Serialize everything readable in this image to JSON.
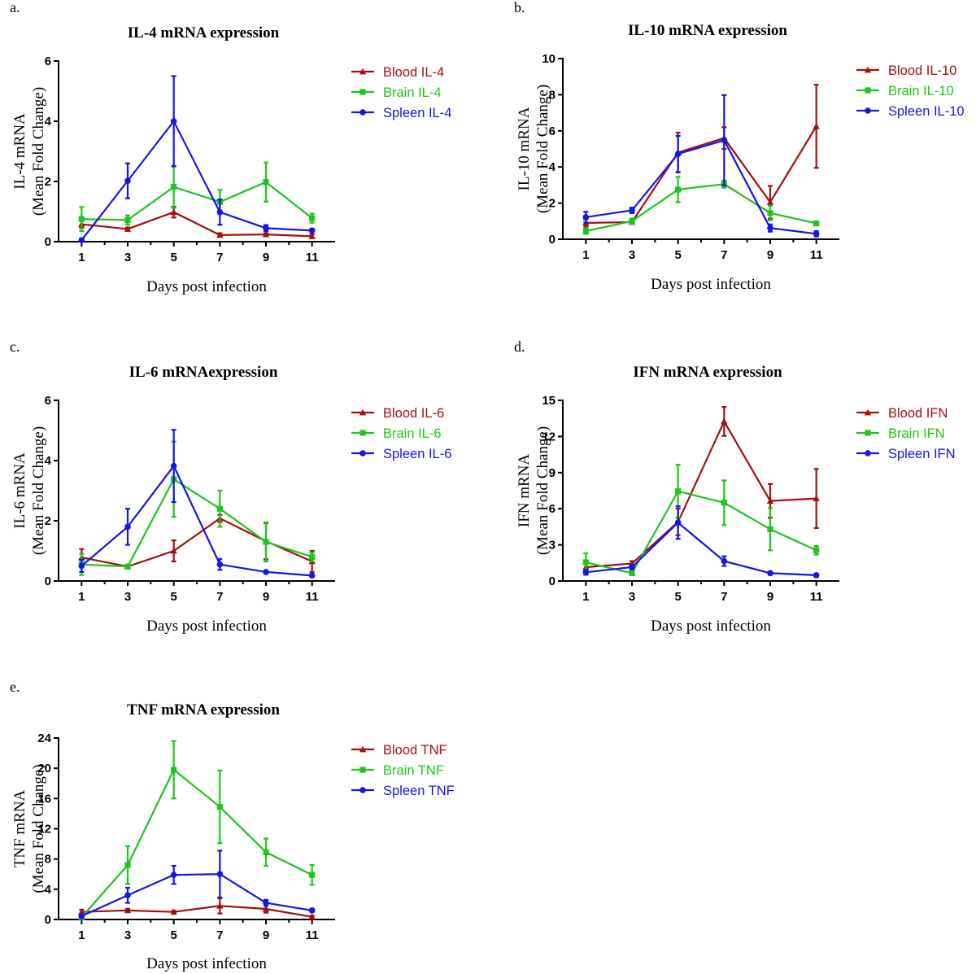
{
  "colors": {
    "blood": "#A50F0F",
    "brain": "#1DC51D",
    "spleen": "#1515E8",
    "axis": "#000000"
  },
  "chart_data": [
    {
      "type": "line",
      "panel_label": "a.",
      "title": "IL-4 mRNA expression",
      "ylabel": [
        "IL-4 mRNA",
        "(Mean Fold Change)"
      ],
      "xlabel": "Days post infection",
      "x": [
        1,
        3,
        5,
        7,
        9,
        11
      ],
      "xlim": [
        0,
        12
      ],
      "ylim": [
        0,
        6
      ],
      "yticks": [
        0,
        2,
        4,
        6
      ],
      "ytick_labels": [
        "0",
        "2",
        "4",
        "6"
      ],
      "legend": "top-right",
      "series": [
        {
          "name": "Blood IL-4",
          "color_key": "blood",
          "marker": "triangle",
          "values": [
            0.58,
            0.42,
            0.98,
            0.22,
            0.24,
            0.18
          ],
          "errors": [
            0.12,
            0.05,
            0.18,
            0.06,
            0.04,
            0.06
          ]
        },
        {
          "name": "Brain IL-4",
          "color_key": "brain",
          "marker": "square",
          "values": [
            0.75,
            0.72,
            1.82,
            1.32,
            1.98,
            0.78
          ],
          "errors": [
            0.4,
            0.15,
            0.7,
            0.4,
            0.65,
            0.15
          ]
        },
        {
          "name": "Spleen IL-4",
          "color_key": "spleen",
          "marker": "circle",
          "values": [
            0.05,
            2.02,
            4.0,
            0.98,
            0.45,
            0.37
          ],
          "errors": [
            0.05,
            0.58,
            1.5,
            0.42,
            0.1,
            0.06
          ]
        }
      ]
    },
    {
      "type": "line",
      "panel_label": "b.",
      "title": "IL-10 mRNA expression",
      "ylabel": [
        "IL-10 mRNA",
        "(Mean Fold Change)"
      ],
      "xlabel": "Days post infection",
      "x": [
        1,
        3,
        5,
        7,
        9,
        11
      ],
      "xlim": [
        0,
        12
      ],
      "ylim": [
        0,
        10
      ],
      "yticks": [
        0,
        2,
        4,
        6,
        8,
        10
      ],
      "ytick_labels": [
        "0",
        "2",
        "4",
        "6",
        "8",
        "10"
      ],
      "legend": "top-right",
      "series": [
        {
          "name": "Blood IL-10",
          "color_key": "blood",
          "marker": "triangle",
          "values": [
            0.9,
            0.95,
            4.8,
            5.6,
            2.05,
            6.25
          ],
          "errors": [
            0.2,
            0.1,
            1.1,
            0.6,
            0.9,
            2.3
          ]
        },
        {
          "name": "Brain IL-10",
          "color_key": "brain",
          "marker": "square",
          "values": [
            0.45,
            1.0,
            2.75,
            3.05,
            1.45,
            0.88
          ],
          "errors": [
            0.15,
            0.15,
            0.7,
            0.2,
            0.4,
            0.1
          ]
        },
        {
          "name": "Spleen IL-10",
          "color_key": "spleen",
          "marker": "circle",
          "values": [
            1.22,
            1.6,
            4.72,
            5.48,
            0.62,
            0.3
          ],
          "errors": [
            0.3,
            0.15,
            1.0,
            2.5,
            0.2,
            0.15
          ]
        }
      ]
    },
    {
      "type": "line",
      "panel_label": "c.",
      "title": "IL-6 mRNAexpression",
      "ylabel": [
        "IL-6 mRNA",
        "(Mean Fold Change)"
      ],
      "xlabel": "Days post infection",
      "x": [
        1,
        3,
        5,
        7,
        9,
        11
      ],
      "xlim": [
        0,
        12
      ],
      "ylim": [
        0,
        6
      ],
      "yticks": [
        0,
        2,
        4,
        6
      ],
      "ytick_labels": [
        "0",
        "2",
        "4",
        "6"
      ],
      "legend": "top-right",
      "series": [
        {
          "name": "Blood IL-6",
          "color_key": "blood",
          "marker": "triangle",
          "values": [
            0.78,
            0.48,
            1.0,
            2.08,
            1.32,
            0.65
          ],
          "errors": [
            0.28,
            0.04,
            0.35,
            0.12,
            0.6,
            0.35
          ]
        },
        {
          "name": "Brain IL-6",
          "color_key": "brain",
          "marker": "square",
          "values": [
            0.55,
            0.48,
            3.38,
            2.4,
            1.3,
            0.8
          ],
          "errors": [
            0.35,
            0.04,
            1.25,
            0.6,
            0.65,
            0.15
          ]
        },
        {
          "name": "Spleen IL-6",
          "color_key": "spleen",
          "marker": "circle",
          "values": [
            0.5,
            1.8,
            3.82,
            0.55,
            0.3,
            0.18
          ],
          "errors": [
            0.2,
            0.6,
            1.2,
            0.18,
            0.04,
            0.04
          ]
        }
      ]
    },
    {
      "type": "line",
      "panel_label": "d.",
      "title": "IFN mRNA expression",
      "ylabel": [
        "IFN mRNA",
        "(Mean Fold Change)"
      ],
      "xlabel": "Days post infection",
      "x": [
        1,
        3,
        5,
        7,
        9,
        11
      ],
      "xlim": [
        0,
        12
      ],
      "ylim": [
        0,
        15
      ],
      "yticks": [
        0,
        3,
        6,
        9,
        12,
        15
      ],
      "ytick_labels": [
        "0",
        "3",
        "6",
        "9",
        "12",
        "15"
      ],
      "legend": "top-right",
      "series": [
        {
          "name": "Blood IFN",
          "color_key": "blood",
          "marker": "triangle",
          "values": [
            1.15,
            1.45,
            4.9,
            13.25,
            6.65,
            6.85
          ],
          "errors": [
            0.3,
            0.2,
            1.1,
            1.2,
            1.4,
            2.45
          ]
        },
        {
          "name": "Brain IFN",
          "color_key": "brain",
          "marker": "square",
          "values": [
            1.55,
            0.65,
            7.45,
            6.5,
            4.3,
            2.55
          ],
          "errors": [
            0.75,
            0.15,
            2.2,
            1.85,
            1.75,
            0.35
          ]
        },
        {
          "name": "Spleen IFN",
          "color_key": "spleen",
          "marker": "circle",
          "values": [
            0.72,
            1.15,
            4.85,
            1.65,
            0.65,
            0.48
          ],
          "errors": [
            0.2,
            0.2,
            1.35,
            0.4,
            0.1,
            0.12
          ]
        }
      ]
    },
    {
      "type": "line",
      "panel_label": "e.",
      "title": "TNF mRNA expression",
      "ylabel": [
        "TNF mRNA",
        "(Mean Fold Change)"
      ],
      "xlabel": "Days post infection",
      "x": [
        1,
        3,
        5,
        7,
        9,
        11
      ],
      "xlim": [
        0,
        12
      ],
      "ylim": [
        0,
        24
      ],
      "yticks": [
        0,
        4,
        8,
        12,
        16,
        20,
        24
      ],
      "ytick_labels": [
        "0",
        "4",
        "8",
        "12",
        "16",
        "20",
        "24"
      ],
      "legend": "top-right",
      "series": [
        {
          "name": "Blood TNF",
          "color_key": "blood",
          "marker": "triangle",
          "values": [
            1.0,
            1.2,
            1.0,
            1.8,
            1.4,
            0.35
          ],
          "errors": [
            0.3,
            0.2,
            0.15,
            1.0,
            0.5,
            0.15
          ]
        },
        {
          "name": "Brain TNF",
          "color_key": "brain",
          "marker": "square",
          "values": [
            0.3,
            7.2,
            19.8,
            14.9,
            8.9,
            5.9
          ],
          "errors": [
            0.2,
            2.5,
            3.8,
            4.8,
            1.8,
            1.3
          ]
        },
        {
          "name": "Spleen TNF",
          "color_key": "spleen",
          "marker": "circle",
          "values": [
            0.45,
            3.2,
            5.9,
            6.0,
            2.2,
            1.2
          ],
          "errors": [
            0.15,
            1.0,
            1.2,
            3.1,
            0.4,
            0.2
          ]
        }
      ]
    }
  ]
}
